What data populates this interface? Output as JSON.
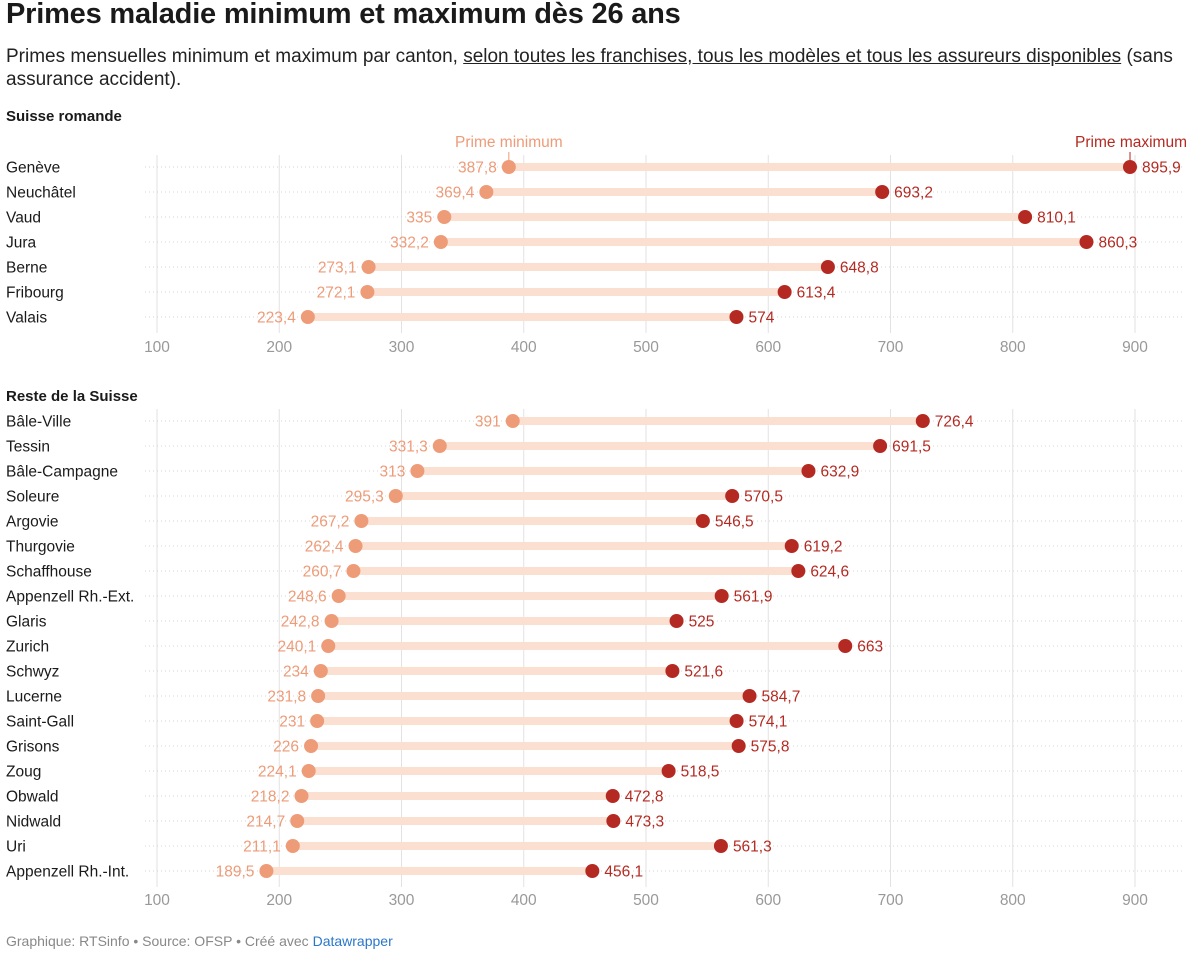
{
  "title": "Primes maladie minimum et maximum dès 26 ans",
  "subtitle": {
    "before": "Primes mensuelles minimum et maximum par canton, ",
    "underlined": "selon toutes les franchises, tous les modèles et tous les assureurs disponibles",
    "after": " (sans assurance accident)."
  },
  "footer": {
    "graphic": "Graphique: RTSinfo",
    "sep1": " • ",
    "source": "Source: OFSP",
    "sep2": " • ",
    "created_prefix": "Créé avec ",
    "tool": "Datawrapper"
  },
  "colors": {
    "min": "#ee9b78",
    "max": "#b42a22",
    "bar": "#fbe0d2",
    "grid": "#e2e2e2",
    "tick": "#999999"
  },
  "chart_data": [
    {
      "type": "dumbbell",
      "title": "Suisse romande",
      "xlim": [
        100,
        950
      ],
      "xticks": [
        100,
        200,
        300,
        400,
        500,
        600,
        700,
        800,
        900
      ],
      "annotations": {
        "min": "Prime minimum",
        "max": "Prime maximum"
      },
      "series_names": [
        "Prime minimum",
        "Prime maximum"
      ],
      "rows": [
        {
          "canton": "Genève",
          "min": 387.8,
          "max": 895.9,
          "min_label": "387,8",
          "max_label": "895,9"
        },
        {
          "canton": "Neuchâtel",
          "min": 369.4,
          "max": 693.2,
          "min_label": "369,4",
          "max_label": "693,2"
        },
        {
          "canton": "Vaud",
          "min": 335,
          "max": 810.1,
          "min_label": "335",
          "max_label": "810,1"
        },
        {
          "canton": "Jura",
          "min": 332.2,
          "max": 860.3,
          "min_label": "332,2",
          "max_label": "860,3"
        },
        {
          "canton": "Berne",
          "min": 273.1,
          "max": 648.8,
          "min_label": "273,1",
          "max_label": "648,8"
        },
        {
          "canton": "Fribourg",
          "min": 272.1,
          "max": 613.4,
          "min_label": "272,1",
          "max_label": "613,4"
        },
        {
          "canton": "Valais",
          "min": 223.4,
          "max": 574,
          "min_label": "223,4",
          "max_label": "574"
        }
      ]
    },
    {
      "type": "dumbbell",
      "title": "Reste de la Suisse",
      "xlim": [
        100,
        950
      ],
      "xticks": [
        100,
        200,
        300,
        400,
        500,
        600,
        700,
        800,
        900
      ],
      "rows": [
        {
          "canton": "Bâle-Ville",
          "min": 391,
          "max": 726.4,
          "min_label": "391",
          "max_label": "726,4"
        },
        {
          "canton": "Tessin",
          "min": 331.3,
          "max": 691.5,
          "min_label": "331,3",
          "max_label": "691,5"
        },
        {
          "canton": "Bâle-Campagne",
          "min": 313,
          "max": 632.9,
          "min_label": "313",
          "max_label": "632,9"
        },
        {
          "canton": "Soleure",
          "min": 295.3,
          "max": 570.5,
          "min_label": "295,3",
          "max_label": "570,5"
        },
        {
          "canton": "Argovie",
          "min": 267.2,
          "max": 546.5,
          "min_label": "267,2",
          "max_label": "546,5"
        },
        {
          "canton": "Thurgovie",
          "min": 262.4,
          "max": 619.2,
          "min_label": "262,4",
          "max_label": "619,2"
        },
        {
          "canton": "Schaffhouse",
          "min": 260.7,
          "max": 624.6,
          "min_label": "260,7",
          "max_label": "624,6"
        },
        {
          "canton": "Appenzell Rh.-Ext.",
          "min": 248.6,
          "max": 561.9,
          "min_label": "248,6",
          "max_label": "561,9"
        },
        {
          "canton": "Glaris",
          "min": 242.8,
          "max": 525,
          "min_label": "242,8",
          "max_label": "525"
        },
        {
          "canton": "Zurich",
          "min": 240.1,
          "max": 663,
          "min_label": "240,1",
          "max_label": "663"
        },
        {
          "canton": "Schwyz",
          "min": 234,
          "max": 521.6,
          "min_label": "234",
          "max_label": "521,6"
        },
        {
          "canton": "Lucerne",
          "min": 231.8,
          "max": 584.7,
          "min_label": "231,8",
          "max_label": "584,7"
        },
        {
          "canton": "Saint-Gall",
          "min": 231,
          "max": 574.1,
          "min_label": "231",
          "max_label": "574,1"
        },
        {
          "canton": "Grisons",
          "min": 226,
          "max": 575.8,
          "min_label": "226",
          "max_label": "575,8"
        },
        {
          "canton": "Zoug",
          "min": 224.1,
          "max": 518.5,
          "min_label": "224,1",
          "max_label": "518,5"
        },
        {
          "canton": "Obwald",
          "min": 218.2,
          "max": 472.8,
          "min_label": "218,2",
          "max_label": "472,8"
        },
        {
          "canton": "Nidwald",
          "min": 214.7,
          "max": 473.3,
          "min_label": "214,7",
          "max_label": "473,3"
        },
        {
          "canton": "Uri",
          "min": 211.1,
          "max": 561.3,
          "min_label": "211,1",
          "max_label": "561,3"
        },
        {
          "canton": "Appenzell Rh.-Int.",
          "min": 189.5,
          "max": 456.1,
          "min_label": "189,5",
          "max_label": "456,1"
        }
      ]
    }
  ]
}
